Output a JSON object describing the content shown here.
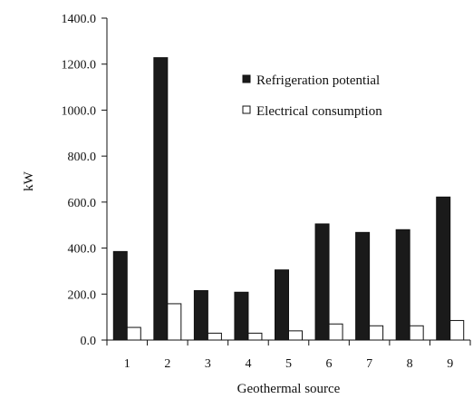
{
  "chart_data": {
    "type": "bar",
    "title": "",
    "xlabel": "Geothermal source",
    "ylabel": "kW",
    "categories": [
      "1",
      "2",
      "3",
      "4",
      "5",
      "6",
      "7",
      "8",
      "9"
    ],
    "ylim": [
      0,
      1400
    ],
    "yticks": [
      "0.0",
      "200.0",
      "400.0",
      "600.0",
      "800.0",
      "1000.0",
      "1200.0",
      "1400.0"
    ],
    "grid": false,
    "legend_position": "top-right",
    "series": [
      {
        "name": "Refrigeration potential",
        "color": "#1a1a1a",
        "values": [
          385,
          1228,
          215,
          208,
          305,
          505,
          468,
          480,
          622
        ]
      },
      {
        "name": "Electrical consumption",
        "color": "#ffffff",
        "values": [
          55,
          158,
          30,
          30,
          40,
          70,
          62,
          62,
          85
        ]
      }
    ]
  }
}
